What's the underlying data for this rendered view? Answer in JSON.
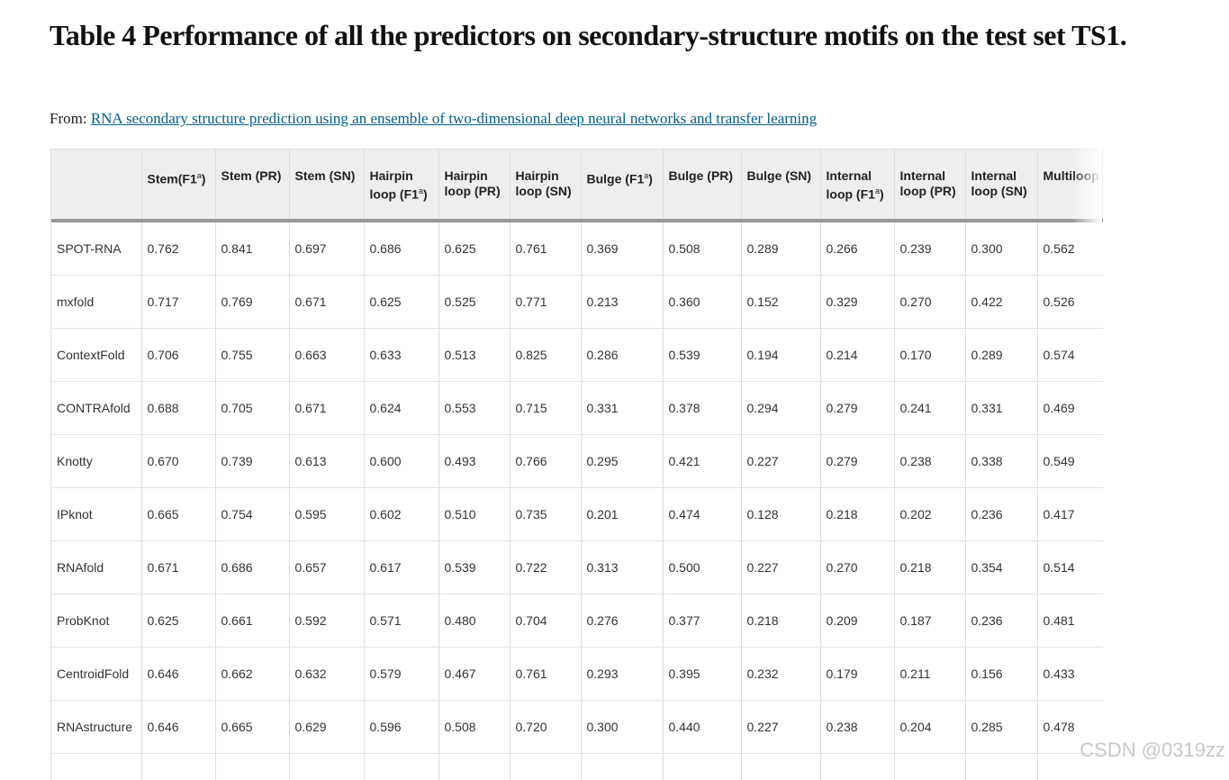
{
  "header": {
    "title": "Table 4 Performance of all the predictors on secondary-structure motifs on the test set TS1.",
    "from_label": "From:",
    "link": "RNA secondary structure prediction using an ensemble of two-dimensional deep neural networks and transfer learning"
  },
  "table": {
    "header": [
      {
        "pre": "Stem(F1",
        "sup": "a",
        "post": ")"
      },
      "Stem (PR)",
      "Stem (SN)",
      {
        "pre": "Hairpin loop (F1",
        "sup": "a",
        "post": ")"
      },
      "Hairpin loop (PR)",
      "Hairpin loop (SN)",
      {
        "pre": "Bulge (F1",
        "sup": "a",
        "post": ")"
      },
      "Bulge (PR)",
      "Bulge (SN)",
      {
        "pre": "Internal loop (F1",
        "sup": "a",
        "post": ")"
      },
      "Internal loop (PR)",
      "Internal loop (SN)",
      "Multiloop"
    ],
    "rows": [
      {
        "label": "SPOT-RNA",
        "cells": [
          "0.762",
          "0.841",
          "0.697",
          "0.686",
          "0.625",
          "0.761",
          "0.369",
          "0.508",
          "0.289",
          "0.266",
          "0.239",
          "0.300",
          "0.562"
        ]
      },
      {
        "label": "mxfold",
        "cells": [
          "0.717",
          "0.769",
          "0.671",
          "0.625",
          "0.525",
          "0.771",
          "0.213",
          "0.360",
          "0.152",
          "0.329",
          "0.270",
          "0.422",
          "0.526"
        ]
      },
      {
        "label": "ContextFold",
        "cells": [
          "0.706",
          "0.755",
          "0.663",
          "0.633",
          "0.513",
          "0.825",
          "0.286",
          "0.539",
          "0.194",
          "0.214",
          "0.170",
          "0.289",
          "0.574"
        ]
      },
      {
        "label": "CONTRAfold",
        "cells": [
          "0.688",
          "0.705",
          "0.671",
          "0.624",
          "0.553",
          "0.715",
          "0.331",
          "0.378",
          "0.294",
          "0.279",
          "0.241",
          "0.331",
          "0.469"
        ]
      },
      {
        "label": "Knotty",
        "cells": [
          "0.670",
          "0.739",
          "0.613",
          "0.600",
          "0.493",
          "0.766",
          "0.295",
          "0.421",
          "0.227",
          "0.279",
          "0.238",
          "0.338",
          "0.549"
        ]
      },
      {
        "label": "IPknot",
        "cells": [
          "0.665",
          "0.754",
          "0.595",
          "0.602",
          "0.510",
          "0.735",
          "0.201",
          "0.474",
          "0.128",
          "0.218",
          "0.202",
          "0.236",
          "0.417"
        ]
      },
      {
        "label": "RNAfold",
        "cells": [
          "0.671",
          "0.686",
          "0.657",
          "0.617",
          "0.539",
          "0.722",
          "0.313",
          "0.500",
          "0.227",
          "0.270",
          "0.218",
          "0.354",
          "0.514"
        ]
      },
      {
        "label": "ProbKnot",
        "cells": [
          "0.625",
          "0.661",
          "0.592",
          "0.571",
          "0.480",
          "0.704",
          "0.276",
          "0.377",
          "0.218",
          "0.209",
          "0.187",
          "0.236",
          "0.481"
        ]
      },
      {
        "label": "CentroidFold",
        "cells": [
          "0.646",
          "0.662",
          "0.632",
          "0.579",
          "0.467",
          "0.761",
          "0.293",
          "0.395",
          "0.232",
          "0.179",
          "0.211",
          "0.156",
          "0.433"
        ]
      },
      {
        "label": "RNAstructure",
        "cells": [
          "0.646",
          "0.665",
          "0.629",
          "0.596",
          "0.508",
          "0.720",
          "0.300",
          "0.440",
          "0.227",
          "0.238",
          "0.204",
          "0.285",
          "0.478"
        ]
      }
    ]
  },
  "watermark": "CSDN @0319zz"
}
